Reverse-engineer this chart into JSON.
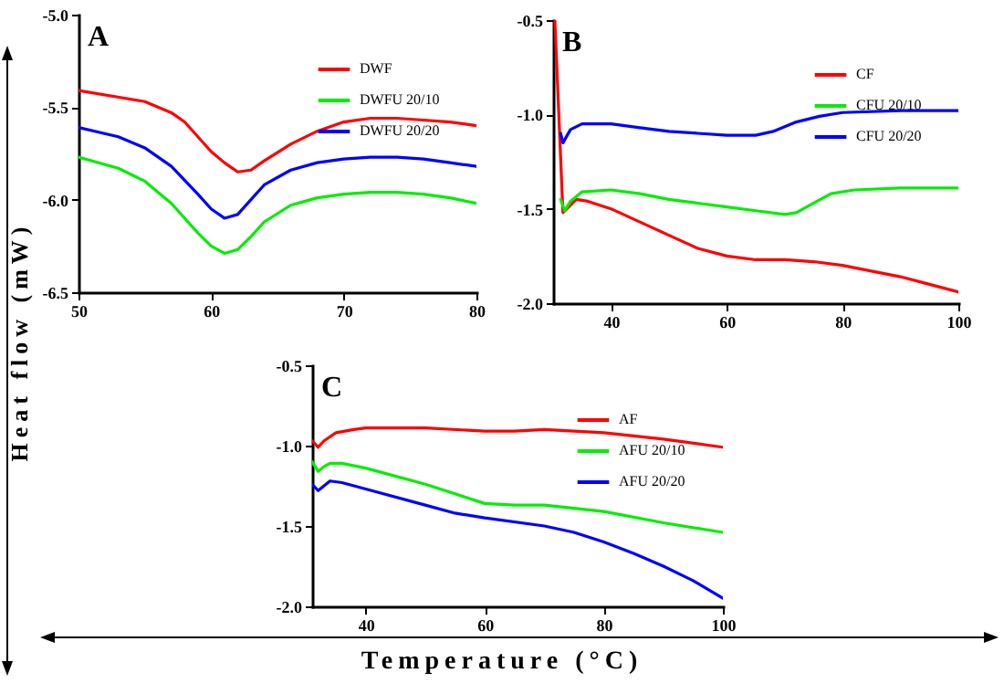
{
  "chart_data": [
    {
      "type": "line",
      "ylabel": "Heat flow (mW)",
      "annotations": [
        "A"
      ],
      "legend": "top right",
      "line_style": "solid",
      "xlim": [
        50,
        80
      ],
      "xticks": [
        50,
        60,
        70,
        80
      ],
      "ylim": [
        -6.5,
        -5.0
      ],
      "yticks": [
        {
          "value": -6.5,
          "label": "-6.5"
        },
        {
          "value": -6,
          "label": "-6.0"
        },
        {
          "value": -5.5,
          "label": "-5.5"
        },
        {
          "value": -5,
          "label": "-5.0"
        }
      ],
      "series": [
        {
          "name": "DWF",
          "color": "#ff0000",
          "x": [
            50,
            55,
            57,
            58,
            59,
            60,
            61,
            62,
            63,
            64,
            66,
            68,
            70,
            72,
            74,
            76,
            78,
            80
          ],
          "values": [
            -5.41,
            -5.47,
            -5.53,
            -5.58,
            -5.66,
            -5.74,
            -5.8,
            -5.85,
            -5.84,
            -5.79,
            -5.7,
            -5.63,
            -5.58,
            -5.56,
            -5.56,
            -5.57,
            -5.58,
            -5.6
          ]
        },
        {
          "name": "DWFU 20/10",
          "color": "#00ee00",
          "x": [
            50,
            53,
            55,
            57,
            59,
            60,
            61,
            62,
            63,
            64,
            66,
            68,
            70,
            72,
            74,
            76,
            78,
            80
          ],
          "values": [
            -5.77,
            -5.83,
            -5.9,
            -6.02,
            -6.18,
            -6.25,
            -6.29,
            -6.27,
            -6.2,
            -6.12,
            -6.03,
            -5.99,
            -5.97,
            -5.96,
            -5.96,
            -5.97,
            -5.99,
            -6.02
          ]
        },
        {
          "name": "DWFU 20/20",
          "color": "#0000ff",
          "x": [
            50,
            53,
            55,
            57,
            59,
            60,
            61,
            62,
            63,
            64,
            66,
            68,
            70,
            72,
            74,
            76,
            78,
            80
          ],
          "values": [
            -5.61,
            -5.66,
            -5.72,
            -5.82,
            -5.97,
            -6.05,
            -6.1,
            -6.08,
            -6.0,
            -5.92,
            -5.84,
            -5.8,
            -5.78,
            -5.77,
            -5.77,
            -5.78,
            -5.8,
            -5.82
          ]
        }
      ]
    },
    {
      "type": "line",
      "annotations": [
        "B"
      ],
      "legend": "top right",
      "line_style": "solid",
      "xlim": [
        30,
        100
      ],
      "xticks": [
        40,
        60,
        80,
        100
      ],
      "ylim": [
        -2.0,
        -0.5
      ],
      "yticks": [
        {
          "value": -2,
          "label": "-2.0"
        },
        {
          "value": -1.5,
          "label": "-1.5"
        },
        {
          "value": -1,
          "label": "-1.0"
        },
        {
          "value": -0.5,
          "label": "-0.5"
        }
      ],
      "series": [
        {
          "name": "CF",
          "color": "#ff0000",
          "x": [
            30.3,
            31.7,
            34,
            36,
            40,
            45,
            50,
            55,
            60,
            65,
            70,
            75,
            80,
            85,
            90,
            95,
            100
          ],
          "values": [
            -0.5,
            -1.52,
            -1.45,
            -1.46,
            -1.5,
            -1.57,
            -1.64,
            -1.71,
            -1.75,
            -1.77,
            -1.77,
            -1.78,
            -1.8,
            -1.83,
            -1.86,
            -1.9,
            -1.94
          ]
        },
        {
          "name": "CFU 20/10",
          "color": "#00ee00",
          "x": [
            31.3,
            32,
            33,
            35,
            40,
            45,
            50,
            55,
            60,
            65,
            70,
            72,
            75,
            78,
            82,
            90,
            100
          ],
          "values": [
            -1.45,
            -1.51,
            -1.46,
            -1.41,
            -1.4,
            -1.42,
            -1.45,
            -1.47,
            -1.49,
            -1.51,
            -1.53,
            -1.52,
            -1.47,
            -1.42,
            -1.4,
            -1.39,
            -1.39
          ]
        },
        {
          "name": "CFU 20/20",
          "color": "#0000ff",
          "x": [
            31.3,
            31.7,
            33,
            35,
            40,
            45,
            50,
            55,
            60,
            65,
            68,
            72,
            76,
            80,
            90,
            100
          ],
          "values": [
            -1.1,
            -1.15,
            -1.08,
            -1.05,
            -1.05,
            -1.07,
            -1.09,
            -1.1,
            -1.11,
            -1.11,
            -1.09,
            -1.04,
            -1.01,
            -0.99,
            -0.98,
            -0.98
          ]
        }
      ]
    },
    {
      "type": "line",
      "xlabel": "Temperature (°C)",
      "annotations": [
        "C"
      ],
      "legend": "top right",
      "line_style": "solid",
      "xlim": [
        31,
        100
      ],
      "xticks": [
        40,
        60,
        80,
        100
      ],
      "ylim": [
        -2.0,
        -0.5
      ],
      "yticks": [
        {
          "value": -2,
          "label": "-2.0"
        },
        {
          "value": -1.5,
          "label": "-1.5"
        },
        {
          "value": -1,
          "label": "-1.0"
        },
        {
          "value": -0.5,
          "label": "-0.5"
        }
      ],
      "series": [
        {
          "name": "AF",
          "color": "#ff0000",
          "x": [
            31,
            32,
            33,
            35,
            38,
            40,
            50,
            60,
            65,
            70,
            80,
            90,
            100
          ],
          "values": [
            -0.97,
            -1.01,
            -0.97,
            -0.92,
            -0.9,
            -0.89,
            -0.89,
            -0.91,
            -0.91,
            -0.9,
            -0.92,
            -0.96,
            -1.01
          ]
        },
        {
          "name": "AFU 20/10",
          "color": "#00ee00",
          "x": [
            31,
            32,
            33,
            34,
            36,
            40,
            50,
            55,
            60,
            65,
            70,
            80,
            90,
            100
          ],
          "values": [
            -1.1,
            -1.16,
            -1.13,
            -1.11,
            -1.11,
            -1.14,
            -1.24,
            -1.3,
            -1.36,
            -1.37,
            -1.37,
            -1.41,
            -1.48,
            -1.54
          ]
        },
        {
          "name": "AFU 20/20",
          "color": "#0000ff",
          "x": [
            31,
            32,
            33,
            34,
            36,
            40,
            50,
            55,
            60,
            70,
            75,
            80,
            85,
            90,
            95,
            100
          ],
          "values": [
            -1.24,
            -1.28,
            -1.25,
            -1.22,
            -1.23,
            -1.27,
            -1.37,
            -1.42,
            -1.45,
            -1.5,
            -1.54,
            -1.6,
            -1.67,
            -1.75,
            -1.84,
            -1.95
          ]
        }
      ]
    }
  ]
}
